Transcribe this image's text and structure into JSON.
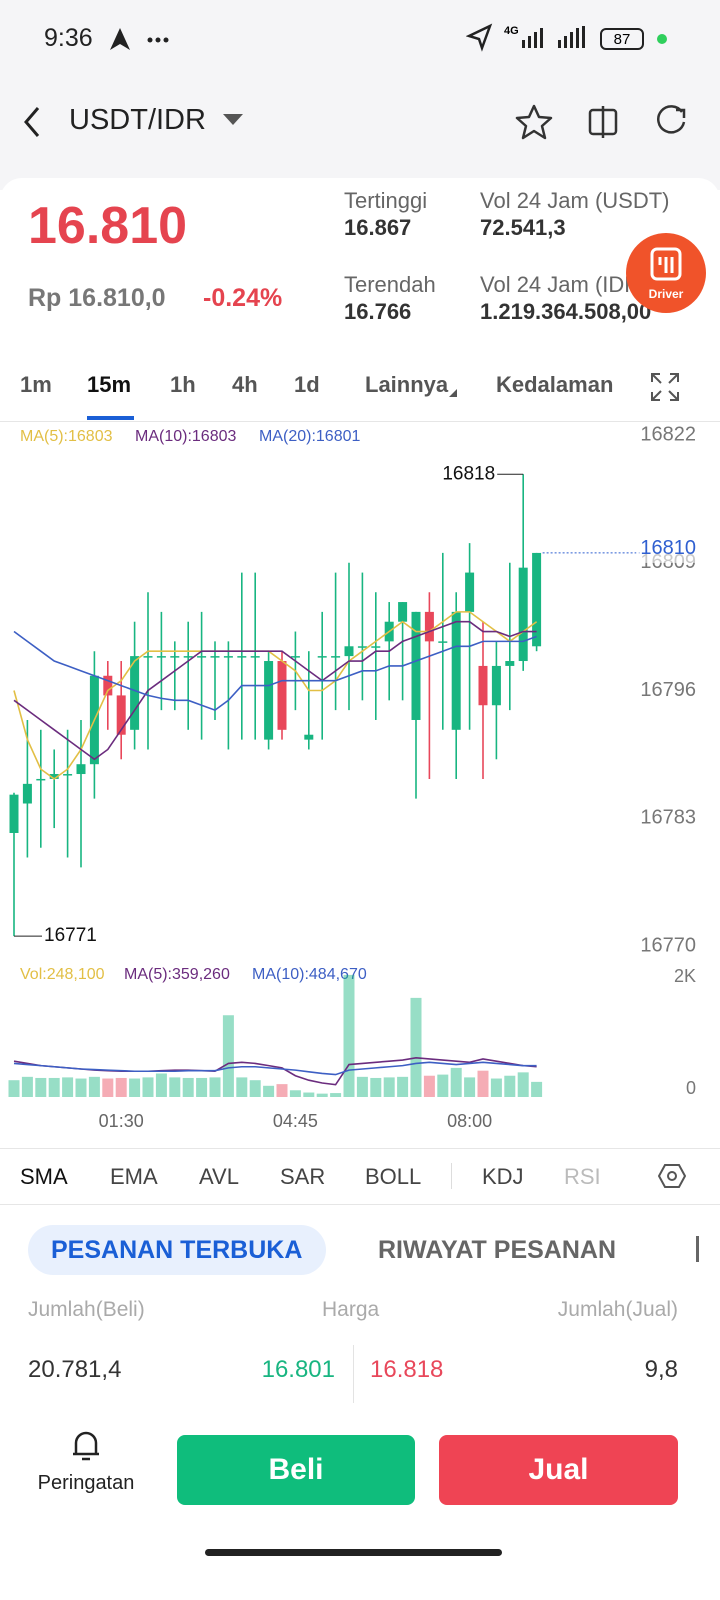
{
  "status_bar": {
    "time": "9:36",
    "network": "4G",
    "battery": "87"
  },
  "header": {
    "pair": "USDT/IDR"
  },
  "ticker": {
    "last": "16.810",
    "idr": "Rp 16.810,0",
    "change": "-0.24%",
    "high_label": "Tertinggi",
    "high": "16.867",
    "low_label": "Terendah",
    "low": "16.766",
    "vol_usdt_label": "Vol 24 Jam (USDT)",
    "vol_usdt": "72.541,3",
    "vol_idr_label": "Vol 24 Jam (IDR)",
    "vol_idr": "1.219.364.508,00"
  },
  "driver_badge": "Driver",
  "intervals": [
    "1m",
    "15m",
    "1h",
    "4h",
    "1d",
    "Lainnya",
    "Kedalaman"
  ],
  "chart": {
    "type": "candlestick",
    "up_color": "#18b581",
    "down_color": "#e8475a",
    "ylim": [
      16770,
      16822
    ],
    "yticks": [
      16822,
      16809,
      16796,
      16783,
      16770
    ],
    "last_price": 16810,
    "max": 16818,
    "min": 16771,
    "candles": [
      [
        16781.5,
        16785.6,
        16771,
        16785.4
      ],
      [
        16784.5,
        16793,
        16779,
        16786.5
      ],
      [
        16787,
        16792,
        16780,
        16787
      ],
      [
        16787,
        16790,
        16782,
        16787.5
      ],
      [
        16787.5,
        16792,
        16779,
        16787.5
      ],
      [
        16787.5,
        16793,
        16778,
        16788.5
      ],
      [
        16788.5,
        16800,
        16785,
        16797.5
      ],
      [
        16797.5,
        16799,
        16792,
        16795.5
      ],
      [
        16795.5,
        16799,
        16789,
        16791.5
      ],
      [
        16792,
        16803,
        16790,
        16799.5
      ],
      [
        16799.5,
        16806,
        16790,
        16799.5
      ],
      [
        16799.5,
        16804,
        16794,
        16799.5
      ],
      [
        16799.5,
        16801,
        16794,
        16799.5
      ],
      [
        16799.5,
        16803,
        16792,
        16799.5
      ],
      [
        16799.5,
        16804,
        16791,
        16799.5
      ],
      [
        16799.5,
        16801,
        16793,
        16799.5
      ],
      [
        16799.5,
        16801,
        16790,
        16799.5
      ],
      [
        16799.5,
        16808,
        16791,
        16799.5
      ],
      [
        16799.5,
        16808,
        16791,
        16799.5
      ],
      [
        16791,
        16800,
        16790,
        16799
      ],
      [
        16799,
        16800,
        16791,
        16792
      ],
      [
        16799.5,
        16802,
        16794,
        16799.5
      ],
      [
        16791,
        16800,
        16790,
        16791.5
      ],
      [
        16799.5,
        16804,
        16791,
        16799.5
      ],
      [
        16799.5,
        16808,
        16794,
        16799.5
      ],
      [
        16799.5,
        16809,
        16794,
        16800.5
      ],
      [
        16800.5,
        16808,
        16795,
        16800.5
      ],
      [
        16800.5,
        16806,
        16793,
        16800.5
      ],
      [
        16801,
        16805,
        16795,
        16803
      ],
      [
        16803,
        16805,
        16795,
        16805
      ],
      [
        16793,
        16804,
        16785,
        16804
      ],
      [
        16804,
        16806,
        16787,
        16801
      ],
      [
        16801,
        16810,
        16792,
        16801
      ],
      [
        16792,
        16806,
        16787,
        16804
      ],
      [
        16804,
        16811,
        16792,
        16808
      ],
      [
        16798.5,
        16803,
        16787,
        16794.5
      ],
      [
        16794.5,
        16801,
        16789,
        16798.5
      ],
      [
        16798.5,
        16809,
        16794,
        16799
      ],
      [
        16799,
        16818,
        16798,
        16808.5
      ],
      [
        16800.5,
        16810,
        16800,
        16810
      ]
    ],
    "ma": [
      {
        "name": "MA(5):16803",
        "color": "#e2bf45",
        "values": [
          16796,
          16791,
          16788,
          16787,
          16788,
          16790,
          16793,
          16796,
          16797,
          16799,
          16800,
          16800,
          16800,
          16800,
          16800,
          16800,
          16800,
          16800,
          16800,
          16800,
          16799,
          16798,
          16796,
          16796,
          16797,
          16799,
          16800,
          16801,
          16802,
          16803,
          16802,
          16802,
          16803,
          16804,
          16804,
          16803,
          16802,
          16801,
          16802,
          16803
        ]
      },
      {
        "name": "MA(10):16803",
        "color": "#6b2c7e",
        "values": [
          16795,
          16794,
          16793,
          16792,
          16791,
          16790,
          16789,
          16790,
          16792,
          16794,
          16796,
          16797,
          16798,
          16799,
          16800,
          16800,
          16800,
          16800,
          16800,
          16800,
          16800,
          16799,
          16798,
          16797,
          16798,
          16799,
          16799,
          16800,
          16800,
          16801,
          16801.5,
          16802,
          16802.5,
          16803,
          16803,
          16802,
          16802,
          16801.5,
          16802,
          16802
        ]
      },
      {
        "name": "MA(20):16801",
        "color": "#3d5fc4",
        "values": [
          16802,
          16801,
          16800,
          16799,
          16798.5,
          16798,
          16797.5,
          16797,
          16796.5,
          16796,
          16795.5,
          16795.2,
          16795,
          16795,
          16794.5,
          16794,
          16795,
          16796.5,
          16796.5,
          16796.5,
          16797,
          16797,
          16797,
          16797,
          16797,
          16797.5,
          16798,
          16798,
          16798.5,
          16798.5,
          16799,
          16799.5,
          16800,
          16800.5,
          16800.5,
          16801,
          16801,
          16801,
          16801,
          16801.5
        ]
      }
    ],
    "xticks": [
      {
        "value": 8,
        "label": "01:30"
      },
      {
        "value": 21,
        "label": "04:45"
      },
      {
        "value": 34,
        "label": "08:00"
      }
    ],
    "volume": {
      "legend": "Vol:248,100",
      "legend_color": "#e2bf45",
      "ylim": [
        0,
        2000
      ],
      "yticks": [
        {
          "value": 2000,
          "label": "2K"
        },
        0
      ],
      "values": [
        300,
        360,
        340,
        340,
        350,
        330,
        360,
        330,
        340,
        330,
        350,
        420,
        350,
        340,
        340,
        350,
        1460,
        350,
        300,
        200,
        230,
        120,
        80,
        60,
        70,
        2180,
        360,
        340,
        350,
        360,
        1770,
        380,
        400,
        520,
        350,
        470,
        330,
        380,
        440,
        270
      ],
      "ma": [
        {
          "name": "MA(5):359,260",
          "color": "#6b2c7e",
          "values": [
            640,
            600,
            560,
            540,
            520,
            500,
            480,
            470,
            460,
            460,
            460,
            470,
            480,
            480,
            470,
            460,
            600,
            620,
            600,
            560,
            520,
            380,
            300,
            250,
            220,
            580,
            600,
            620,
            640,
            660,
            700,
            680,
            660,
            640,
            620,
            680,
            640,
            600,
            560,
            540
          ]
        },
        {
          "name": "MA(10):484,670",
          "color": "#3d5fc4",
          "values": [
            600,
            580,
            560,
            540,
            520,
            500,
            490,
            480,
            470,
            460,
            460,
            460,
            460,
            470,
            470,
            470,
            520,
            540,
            540,
            520,
            500,
            480,
            450,
            420,
            400,
            480,
            500,
            520,
            540,
            560,
            600,
            620,
            600,
            580,
            600,
            620,
            600,
            580,
            560,
            560
          ]
        }
      ]
    }
  },
  "indicators": [
    "SMA",
    "EMA",
    "AVL",
    "SAR",
    "BOLL",
    "KDJ",
    "RSI"
  ],
  "order_tabs": [
    "PESANAN TERBUKA",
    "RIWAYAT PESANAN"
  ],
  "order_book": {
    "headers": [
      "Jumlah(Beli)",
      "Harga",
      "Jumlah(Jual)"
    ],
    "rows": [
      [
        "20.781,4",
        "16.801",
        "16.818",
        "9,8"
      ]
    ]
  },
  "footer": {
    "alert": "Peringatan",
    "buy": "Beli",
    "sell": "Jual"
  }
}
